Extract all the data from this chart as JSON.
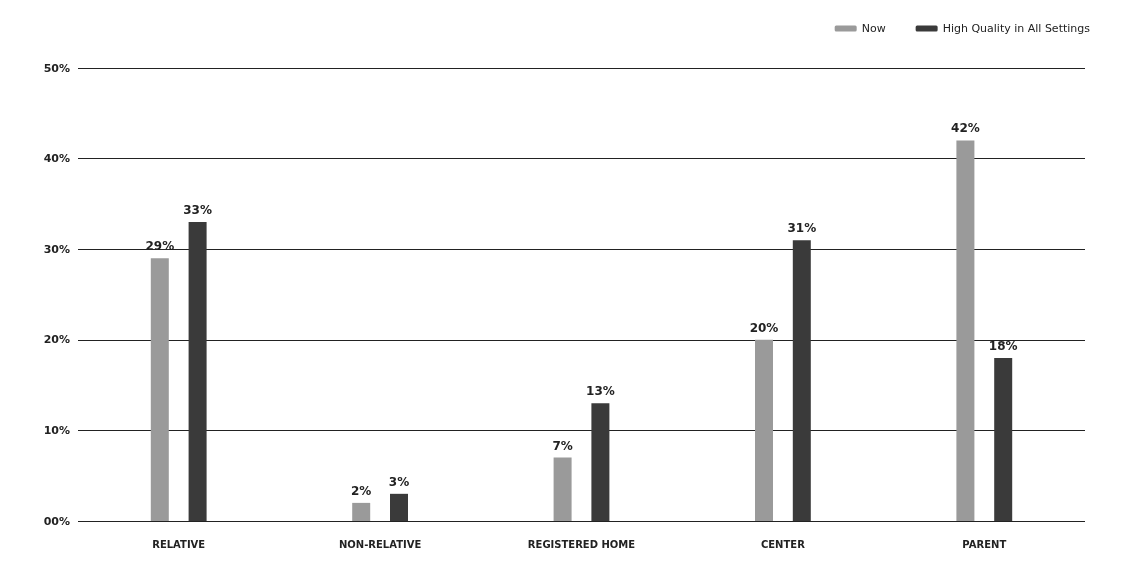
{
  "chart_data": {
    "type": "bar",
    "categories": [
      "RELATIVE",
      "NON-RELATIVE",
      "REGISTERED HOME",
      "CENTER",
      "PARENT"
    ],
    "series": [
      {
        "name": "Now",
        "color": "#9a9a9a",
        "values": [
          29,
          2,
          7,
          20,
          42
        ],
        "value_labels": [
          "29%",
          "2%",
          "7%",
          "20%",
          "42%"
        ]
      },
      {
        "name": "High Quality in All Settings",
        "color": "#3a3a3a",
        "values": [
          33,
          3,
          13,
          31,
          18
        ],
        "value_labels": [
          "33%",
          "3%",
          "13%",
          "31%",
          "18%"
        ]
      }
    ],
    "ylim": [
      0,
      50
    ],
    "yticks": [
      {
        "value": 0,
        "label": "00%"
      },
      {
        "value": 10,
        "label": "10%"
      },
      {
        "value": 20,
        "label": "20%"
      },
      {
        "value": 30,
        "label": "30%"
      },
      {
        "value": 40,
        "label": "40%"
      },
      {
        "value": 50,
        "label": "50%"
      }
    ],
    "grid": "y",
    "legend": "top right"
  }
}
